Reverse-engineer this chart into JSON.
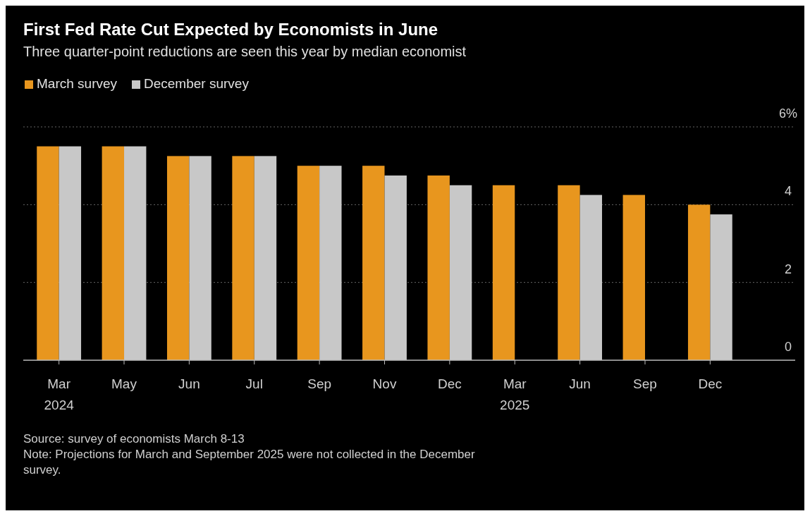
{
  "chart_data": {
    "type": "bar",
    "title": "First Fed Rate Cut Expected by Economists in June",
    "subtitle": "Three quarter-point reductions are seen this year by median economist",
    "categories": [
      "Mar 2024",
      "May",
      "Jun",
      "Jul",
      "Sep",
      "Nov",
      "Dec",
      "Mar 2025",
      "Jun",
      "Sep",
      "Dec"
    ],
    "series": [
      {
        "name": "March survey",
        "color": "#e8961e",
        "values": [
          5.5,
          5.5,
          5.25,
          5.25,
          5.0,
          5.0,
          4.75,
          4.5,
          4.5,
          4.25,
          4.0
        ]
      },
      {
        "name": "December survey",
        "color": "#c8c8c8",
        "values": [
          5.5,
          5.5,
          5.25,
          5.25,
          5.0,
          4.75,
          4.5,
          null,
          4.25,
          null,
          3.75
        ]
      }
    ],
    "ylim": [
      0,
      6
    ],
    "yticks": [
      0,
      2,
      4,
      {
        "value": 6,
        "label": "6%"
      }
    ],
    "grid": "y",
    "legend": "top left",
    "annotations": [
      "Source: survey of economists March 8-13",
      "Note: Projections for March and September 2025 were not collected in the December survey."
    ]
  }
}
